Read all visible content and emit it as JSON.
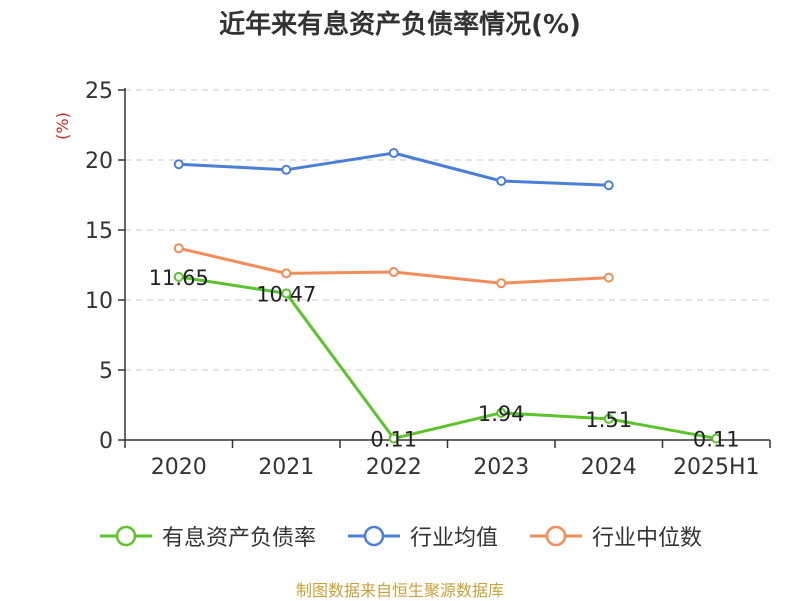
{
  "source": "制图数据来自恒生聚源数据库",
  "chart_data": {
    "type": "line",
    "title": "近年来有息资产负债率情况(%)",
    "ylabel": "(%)",
    "categories": [
      "2020",
      "2021",
      "2022",
      "2023",
      "2024",
      "2025H1"
    ],
    "ylim": [
      0,
      25
    ],
    "yticks": [
      0,
      5,
      10,
      15,
      20,
      25
    ],
    "grid": true,
    "legend_position": "bottom",
    "series": [
      {
        "name": "有息资产负债率",
        "color": "#5cc42b",
        "labels": true,
        "values": [
          11.65,
          10.47,
          0.11,
          1.94,
          1.51,
          0.11
        ]
      },
      {
        "name": "行业均值",
        "color": "#4a7fd8",
        "labels": false,
        "values": [
          19.7,
          19.3,
          20.5,
          18.5,
          18.2,
          null
        ]
      },
      {
        "name": "行业中位数",
        "color": "#f28c5a",
        "labels": false,
        "values": [
          13.7,
          11.9,
          12.0,
          11.2,
          11.6,
          null
        ]
      }
    ]
  }
}
